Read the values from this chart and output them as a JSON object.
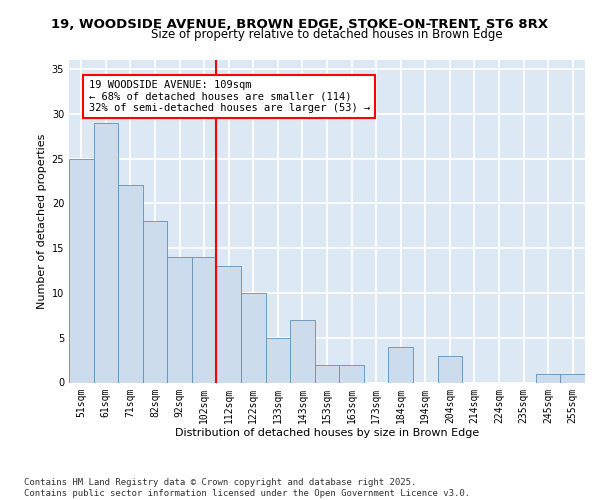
{
  "title_line1": "19, WOODSIDE AVENUE, BROWN EDGE, STOKE-ON-TRENT, ST6 8RX",
  "title_line2": "Size of property relative to detached houses in Brown Edge",
  "xlabel": "Distribution of detached houses by size in Brown Edge",
  "ylabel": "Number of detached properties",
  "categories": [
    "51sqm",
    "61sqm",
    "71sqm",
    "82sqm",
    "92sqm",
    "102sqm",
    "112sqm",
    "122sqm",
    "133sqm",
    "143sqm",
    "153sqm",
    "163sqm",
    "173sqm",
    "184sqm",
    "194sqm",
    "204sqm",
    "214sqm",
    "224sqm",
    "235sqm",
    "245sqm",
    "255sqm"
  ],
  "values": [
    25,
    29,
    22,
    18,
    14,
    14,
    13,
    10,
    5,
    7,
    2,
    2,
    0,
    4,
    0,
    3,
    0,
    0,
    0,
    1,
    1
  ],
  "bar_color": "#ccdcec",
  "bar_edge_color": "#6090b8",
  "vline_color": "red",
  "vline_index": 5.5,
  "annotation_text": "19 WOODSIDE AVENUE: 109sqm\n← 68% of detached houses are smaller (114)\n32% of semi-detached houses are larger (53) →",
  "annotation_box_color": "white",
  "annotation_box_edge_color": "red",
  "ylim": [
    0,
    36
  ],
  "yticks": [
    0,
    5,
    10,
    15,
    20,
    25,
    30,
    35
  ],
  "background_color": "#dce8f4",
  "grid_color": "white",
  "footer_line1": "Contains HM Land Registry data © Crown copyright and database right 2025.",
  "footer_line2": "Contains public sector information licensed under the Open Government Licence v3.0.",
  "title_fontsize": 9.5,
  "subtitle_fontsize": 8.5,
  "axis_label_fontsize": 8,
  "tick_fontsize": 7,
  "annotation_fontsize": 7.5,
  "footer_fontsize": 6.5
}
